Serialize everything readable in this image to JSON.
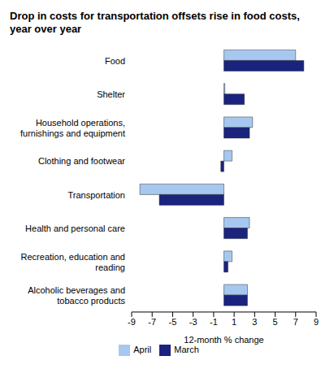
{
  "chart_data": {
    "type": "bar",
    "orientation": "horizontal",
    "title": "Drop in costs for transportation offsets rise in food costs, year over year",
    "x_label": "12-month % change",
    "categories": [
      "Food",
      "Shelter",
      "Household operations, furnishings and equipment",
      "Clothing and footwear",
      "Transportation",
      "Health and personal care",
      "Recreation, education and reading",
      "Alcoholic beverages and tobacco products"
    ],
    "series": [
      {
        "name": "April",
        "color": "#a6c8f0",
        "values": [
          7.0,
          0.1,
          2.8,
          0.8,
          -8.2,
          2.5,
          0.8,
          2.3
        ]
      },
      {
        "name": "March",
        "color": "#1a237e",
        "values": [
          7.8,
          2.0,
          2.5,
          -0.3,
          -6.3,
          2.3,
          0.4,
          2.3
        ]
      }
    ],
    "xlim": [
      -9,
      9
    ],
    "xticks": [
      -9,
      -7,
      -5,
      -3,
      -1,
      1,
      3,
      5,
      7,
      9
    ],
    "grid": false,
    "legend": "bottom"
  }
}
